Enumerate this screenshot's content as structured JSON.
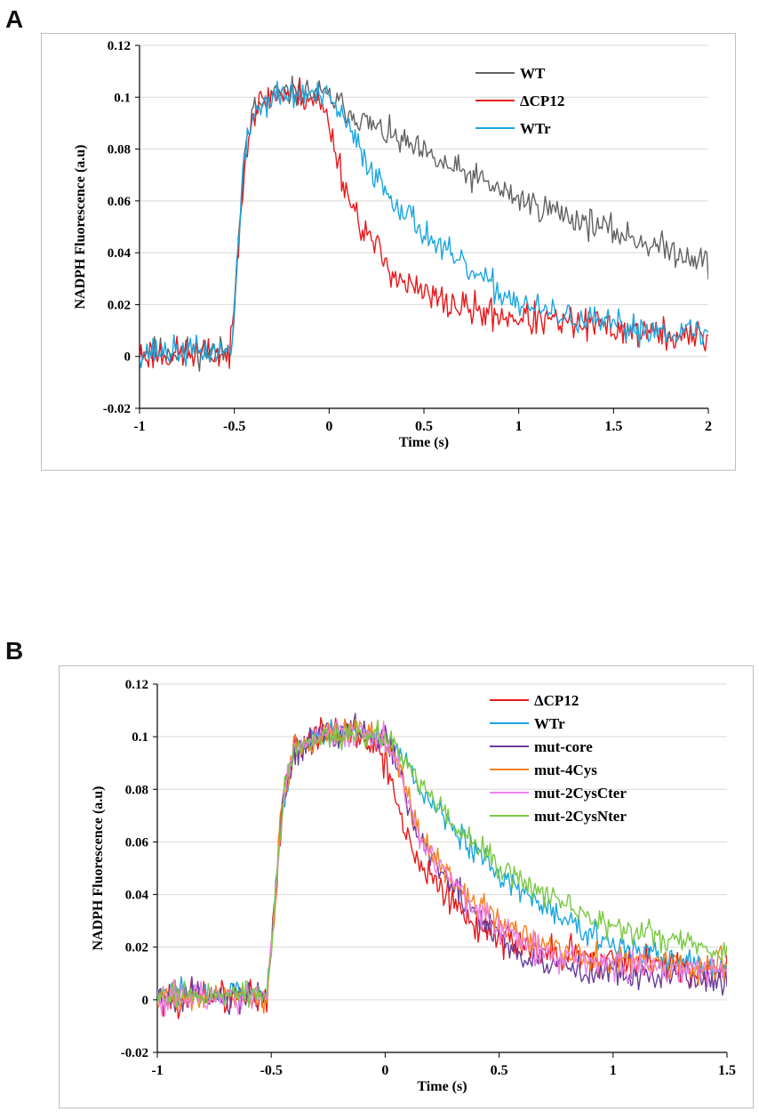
{
  "figure": {
    "panel_a_letter": "A",
    "panel_b_letter": "B"
  },
  "chart_data": [
    {
      "type": "line",
      "panel": "A",
      "title": "",
      "xlabel": "Time (s)",
      "ylabel": "NADPH Fluorescence (a.u)",
      "xlim": [
        -1,
        2
      ],
      "ylim": [
        -0.02,
        0.12
      ],
      "xticks": [
        -1,
        -0.5,
        0,
        0.5,
        1,
        1.5,
        2
      ],
      "xtick_labels": [
        "-1",
        "-0.5",
        "0",
        "0.5",
        "1",
        "1.5",
        "2"
      ],
      "yticks": [
        -0.02,
        0,
        0.02,
        0.04,
        0.06,
        0.08,
        0.1,
        0.12
      ],
      "ytick_labels": [
        "-0.02",
        "0",
        "0.02",
        "0.04",
        "0.06",
        "0.08",
        "0.1",
        "0.12"
      ],
      "grid": "horizontal",
      "legend_position": "top-right",
      "series": [
        {
          "name": "WT",
          "color": "#636363",
          "seed": 11,
          "x": [
            -1,
            -0.52,
            -0.5,
            -0.45,
            -0.4,
            -0.3,
            -0.2,
            -0.1,
            0,
            0.1,
            0.2,
            0.3,
            0.4,
            0.5,
            0.6,
            0.7,
            0.8,
            0.9,
            1.0,
            1.1,
            1.2,
            1.3,
            1.4,
            1.5,
            1.6,
            1.7,
            1.8,
            1.9,
            2.0
          ],
          "y": [
            0.002,
            0.002,
            0.02,
            0.075,
            0.095,
            0.1,
            0.102,
            0.102,
            0.1,
            0.095,
            0.09,
            0.086,
            0.082,
            0.078,
            0.074,
            0.071,
            0.068,
            0.064,
            0.061,
            0.058,
            0.056,
            0.053,
            0.051,
            0.048,
            0.046,
            0.043,
            0.041,
            0.039,
            0.036
          ],
          "noise": 0.0035
        },
        {
          "name": "ΔCP12",
          "color": "#e8191b",
          "seed": 23,
          "x": [
            -1,
            -0.52,
            -0.5,
            -0.45,
            -0.4,
            -0.3,
            -0.2,
            -0.1,
            -0.05,
            0,
            0.05,
            0.1,
            0.15,
            0.2,
            0.3,
            0.4,
            0.5,
            0.6,
            0.7,
            0.8,
            0.9,
            1.0,
            1.2,
            1.4,
            1.6,
            1.8,
            2.0
          ],
          "y": [
            0.001,
            0.001,
            0.02,
            0.075,
            0.095,
            0.101,
            0.102,
            0.1,
            0.098,
            0.09,
            0.075,
            0.062,
            0.054,
            0.047,
            0.036,
            0.028,
            0.024,
            0.021,
            0.019,
            0.017,
            0.016,
            0.015,
            0.013,
            0.012,
            0.01,
            0.008,
            0.007
          ],
          "noise": 0.004
        },
        {
          "name": "WTr",
          "color": "#1aa6e0",
          "seed": 37,
          "x": [
            -1,
            -0.52,
            -0.5,
            -0.45,
            -0.4,
            -0.3,
            -0.2,
            -0.1,
            0,
            0.05,
            0.1,
            0.2,
            0.3,
            0.4,
            0.5,
            0.6,
            0.7,
            0.8,
            0.9,
            1.0,
            1.1,
            1.2,
            1.4,
            1.6,
            1.8,
            2.0
          ],
          "y": [
            0.002,
            0.002,
            0.02,
            0.075,
            0.094,
            0.1,
            0.101,
            0.101,
            0.099,
            0.095,
            0.088,
            0.075,
            0.064,
            0.056,
            0.048,
            0.041,
            0.035,
            0.03,
            0.025,
            0.021,
            0.018,
            0.016,
            0.013,
            0.011,
            0.01,
            0.009
          ],
          "noise": 0.0035
        }
      ]
    },
    {
      "type": "line",
      "panel": "B",
      "title": "",
      "xlabel": "Time (s)",
      "ylabel": "NADPH Fluorescence (a.u)",
      "xlim": [
        -1,
        1.5
      ],
      "ylim": [
        -0.02,
        0.12
      ],
      "xticks": [
        -1,
        -0.5,
        0,
        0.5,
        1,
        1.5
      ],
      "xtick_labels": [
        "-1",
        "-0.5",
        "0",
        "0.5",
        "1",
        "1.5"
      ],
      "yticks": [
        -0.02,
        0,
        0.02,
        0.04,
        0.06,
        0.08,
        0.1,
        0.12
      ],
      "ytick_labels": [
        "-0.02",
        "0",
        "0.02",
        "0.04",
        "0.06",
        "0.08",
        "0.1",
        "0.12"
      ],
      "grid": "horizontal",
      "legend_position": "top-right",
      "series": [
        {
          "name": "ΔCP12",
          "color": "#e8191b",
          "seed": 101,
          "x": [
            -1,
            -0.52,
            -0.5,
            -0.45,
            -0.4,
            -0.3,
            -0.2,
            -0.1,
            -0.05,
            0,
            0.05,
            0.1,
            0.15,
            0.2,
            0.3,
            0.4,
            0.5,
            0.6,
            0.7,
            0.8,
            0.9,
            1.0,
            1.2,
            1.4,
            1.5
          ],
          "y": [
            0.001,
            0.001,
            0.02,
            0.075,
            0.095,
            0.101,
            0.102,
            0.1,
            0.098,
            0.09,
            0.075,
            0.062,
            0.054,
            0.047,
            0.036,
            0.028,
            0.024,
            0.021,
            0.019,
            0.017,
            0.016,
            0.015,
            0.013,
            0.012,
            0.012
          ],
          "noise": 0.004
        },
        {
          "name": "WTr",
          "color": "#1aa6e0",
          "seed": 103,
          "x": [
            -1,
            -0.52,
            -0.5,
            -0.45,
            -0.4,
            -0.3,
            -0.2,
            -0.1,
            0,
            0.05,
            0.1,
            0.2,
            0.3,
            0.4,
            0.5,
            0.6,
            0.7,
            0.8,
            0.9,
            1.0,
            1.1,
            1.2,
            1.4,
            1.5
          ],
          "y": [
            0.002,
            0.002,
            0.02,
            0.075,
            0.094,
            0.1,
            0.101,
            0.101,
            0.099,
            0.095,
            0.088,
            0.075,
            0.064,
            0.056,
            0.048,
            0.041,
            0.035,
            0.03,
            0.025,
            0.021,
            0.018,
            0.016,
            0.013,
            0.012
          ],
          "noise": 0.003
        },
        {
          "name": "mut-core",
          "color": "#6a3d9a",
          "seed": 107,
          "x": [
            -1,
            -0.52,
            -0.5,
            -0.45,
            -0.4,
            -0.3,
            -0.2,
            -0.1,
            0,
            0.05,
            0.1,
            0.15,
            0.2,
            0.3,
            0.4,
            0.5,
            0.6,
            0.7,
            0.8,
            0.9,
            1.0,
            1.2,
            1.4,
            1.5
          ],
          "y": [
            0.001,
            0.001,
            0.02,
            0.075,
            0.095,
            0.1,
            0.101,
            0.101,
            0.099,
            0.09,
            0.075,
            0.062,
            0.053,
            0.042,
            0.032,
            0.024,
            0.018,
            0.014,
            0.012,
            0.011,
            0.01,
            0.009,
            0.008,
            0.008
          ],
          "noise": 0.0035
        },
        {
          "name": "mut-4Cys",
          "color": "#f58220",
          "seed": 109,
          "x": [
            -1,
            -0.52,
            -0.5,
            -0.45,
            -0.4,
            -0.3,
            -0.2,
            -0.1,
            0,
            0.05,
            0.1,
            0.15,
            0.2,
            0.3,
            0.4,
            0.5,
            0.6,
            0.7,
            0.8,
            0.9,
            1.0,
            1.2,
            1.4,
            1.5
          ],
          "y": [
            0.001,
            0.001,
            0.02,
            0.075,
            0.095,
            0.1,
            0.101,
            0.101,
            0.099,
            0.091,
            0.077,
            0.065,
            0.056,
            0.045,
            0.036,
            0.029,
            0.024,
            0.021,
            0.019,
            0.017,
            0.016,
            0.014,
            0.013,
            0.013
          ],
          "noise": 0.0035
        },
        {
          "name": "mut-2CysCter",
          "color": "#ee82ee",
          "seed": 113,
          "x": [
            -1,
            -0.52,
            -0.5,
            -0.45,
            -0.4,
            -0.3,
            -0.2,
            -0.1,
            0,
            0.05,
            0.1,
            0.15,
            0.2,
            0.3,
            0.4,
            0.5,
            0.6,
            0.7,
            0.8,
            0.9,
            1.0,
            1.2,
            1.4,
            1.5
          ],
          "y": [
            0.001,
            0.001,
            0.02,
            0.075,
            0.095,
            0.1,
            0.101,
            0.101,
            0.099,
            0.09,
            0.076,
            0.064,
            0.055,
            0.044,
            0.034,
            0.027,
            0.022,
            0.018,
            0.016,
            0.014,
            0.013,
            0.012,
            0.011,
            0.011
          ],
          "noise": 0.0035
        },
        {
          "name": "mut-2CysNter",
          "color": "#7ac943",
          "seed": 127,
          "x": [
            -1,
            -0.52,
            -0.5,
            -0.45,
            -0.4,
            -0.3,
            -0.2,
            -0.1,
            0,
            0.05,
            0.1,
            0.2,
            0.3,
            0.4,
            0.5,
            0.6,
            0.7,
            0.8,
            0.9,
            1.0,
            1.1,
            1.2,
            1.4,
            1.5
          ],
          "y": [
            0.002,
            0.002,
            0.02,
            0.075,
            0.094,
            0.1,
            0.101,
            0.101,
            0.1,
            0.096,
            0.089,
            0.077,
            0.067,
            0.059,
            0.051,
            0.045,
            0.04,
            0.035,
            0.031,
            0.028,
            0.026,
            0.024,
            0.019,
            0.016
          ],
          "noise": 0.003
        }
      ]
    }
  ]
}
